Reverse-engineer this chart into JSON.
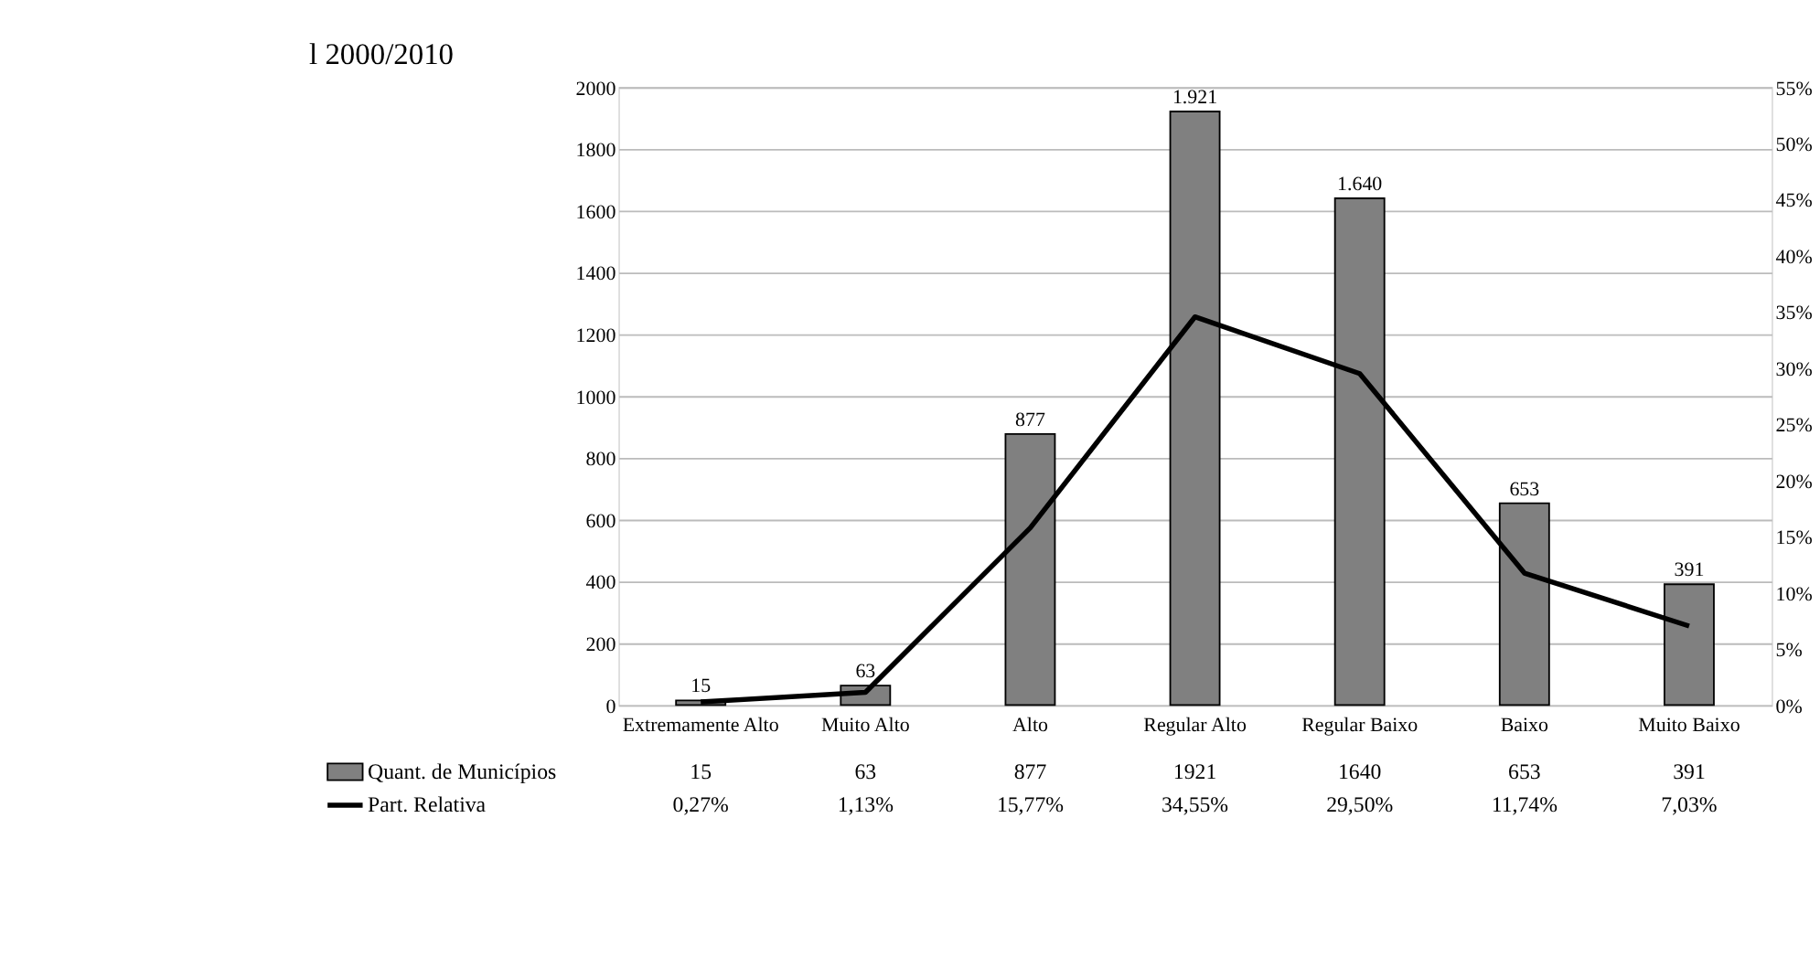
{
  "chart_data": {
    "type": "bar",
    "title": "l 2000/2010",
    "categories": [
      "Extremamente Alto",
      "Muito Alto",
      "Alto",
      "Regular Alto",
      "Regular Baixo",
      "Baixo",
      "Muito Baixo"
    ],
    "series": [
      {
        "name": "Quant. de Municípios",
        "color": "#808080",
        "values": [
          15,
          63,
          877,
          1921,
          1640,
          653,
          391
        ]
      },
      {
        "name": "Part. Relativa",
        "type": "line",
        "axis": "y2",
        "color": "#000000",
        "values": [
          0.27,
          1.13,
          15.77,
          34.55,
          29.5,
          11.74,
          7.03
        ],
        "value_labels": [
          "0,27%",
          "1,13%",
          "15,77%",
          "34,55%",
          "29,50%",
          "11,74%",
          "7,03%"
        ]
      }
    ],
    "ylim": [
      0,
      2000
    ],
    "yticks": [
      0,
      200,
      400,
      600,
      800,
      1000,
      1200,
      1400,
      1600,
      1800,
      2000
    ],
    "y2lim": [
      0,
      55
    ],
    "y2ticks": [
      {
        "value": 0,
        "label": "0%"
      },
      {
        "value": 5,
        "label": "5%"
      },
      {
        "value": 10,
        "label": "10%"
      },
      {
        "value": 15,
        "label": "15%"
      },
      {
        "value": 20,
        "label": "20%"
      },
      {
        "value": 25,
        "label": "25%"
      },
      {
        "value": 30,
        "label": "30%"
      },
      {
        "value": 35,
        "label": "35%"
      },
      {
        "value": 40,
        "label": "40%"
      },
      {
        "value": 45,
        "label": "45%"
      },
      {
        "value": 50,
        "label": "50%"
      },
      {
        "value": 55,
        "label": "55%"
      }
    ],
    "annotations": [
      {
        "text": "15",
        "x": "Extremamente Alto",
        "y": 15
      },
      {
        "text": "63",
        "x": "Muito Alto",
        "y": 63
      },
      {
        "text": "877",
        "x": "Alto",
        "y": 877
      },
      {
        "text": "1.921",
        "x": "Regular Alto",
        "y": 1921
      },
      {
        "text": "1.640",
        "x": "Regular Baixo",
        "y": 1640
      },
      {
        "text": "653",
        "x": "Baixo",
        "y": 653
      },
      {
        "text": "391",
        "x": "Muito Baixo",
        "y": 391
      }
    ],
    "data_labels": true,
    "grid": "y",
    "legend": "bottom",
    "line_style": "solid",
    "marker": "none"
  }
}
